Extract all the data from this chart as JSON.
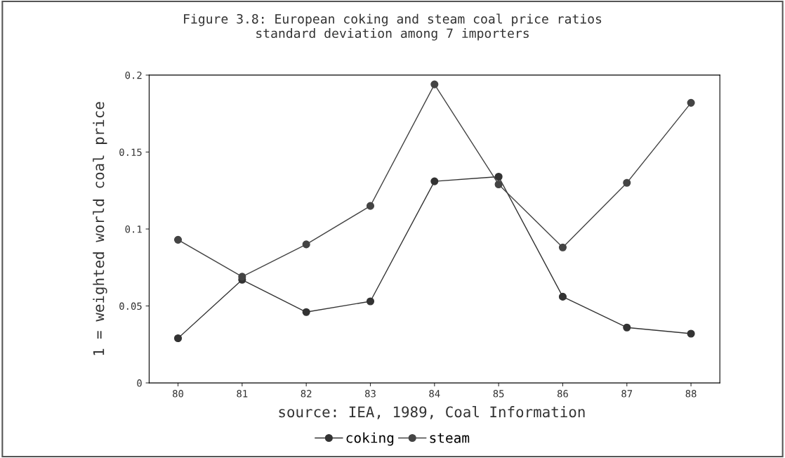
{
  "chart_data": {
    "type": "line",
    "title": "Figure 3.8: European coking and steam coal price ratios\nstandard deviation among 7 importers",
    "ylabel": "1 = weighted world coal price",
    "categories": [
      "80",
      "81",
      "82",
      "83",
      "84",
      "85",
      "86",
      "87",
      "88"
    ],
    "series": [
      {
        "name": "coking",
        "color": "#333333",
        "values": [
          0.029,
          0.067,
          0.046,
          0.053,
          0.131,
          0.134,
          0.056,
          0.036,
          0.032
        ]
      },
      {
        "name": "steam",
        "color": "#444444",
        "values": [
          0.093,
          0.069,
          0.09,
          0.115,
          0.194,
          0.129,
          0.088,
          0.13,
          0.182
        ]
      }
    ],
    "ylim": [
      0,
      0.2
    ],
    "yticks": [
      0,
      0.05,
      0.1,
      0.15,
      0.2
    ],
    "annotations": [
      "source: IEA, 1989, Coal Information"
    ],
    "legend": "bottom",
    "marker": "circle",
    "line_style": "solid",
    "grid": false
  }
}
